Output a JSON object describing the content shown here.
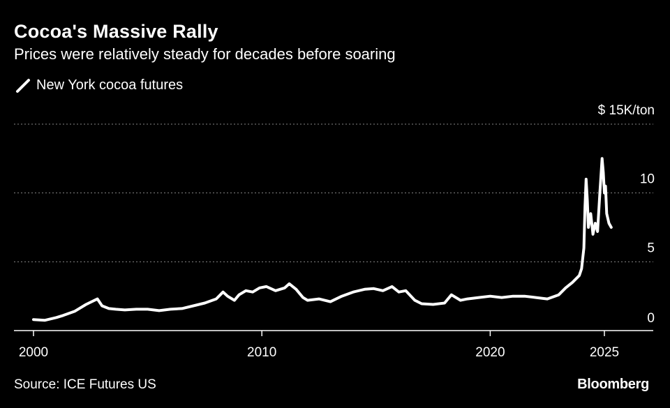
{
  "title": "Cocoa's Massive Rally",
  "subtitle": "Prices were relatively steady for decades before soaring",
  "legend_label": "New York cocoa futures",
  "source": "Source: ICE Futures US",
  "brand": "Bloomberg",
  "colors": {
    "background": "#000000",
    "line": "#ffffff",
    "grid": "#888888",
    "text": "#ffffff"
  },
  "chart_data": {
    "type": "line",
    "title": "Cocoa's Massive Rally",
    "subtitle": "Prices were relatively steady for decades before soaring",
    "xlabel": "",
    "ylabel": "$ 15K/ton",
    "x_ticks": [
      2000,
      2010,
      2020,
      2025
    ],
    "y_ticks": [
      0,
      5,
      10,
      15
    ],
    "y_tick_labels": [
      "0",
      "5",
      "10",
      "$ 15K/ton"
    ],
    "xlim": [
      2000,
      2027.8
    ],
    "ylim": [
      0,
      15
    ],
    "grid": true,
    "legend_position": "top-left",
    "series": [
      {
        "name": "New York cocoa futures",
        "x": [
          2000.0,
          2000.5,
          2001.0,
          2001.3,
          2001.8,
          2002.3,
          2002.8,
          2003.0,
          2003.3,
          2003.6,
          2004.0,
          2004.5,
          2005.0,
          2005.5,
          2006.0,
          2006.5,
          2007.0,
          2007.5,
          2008.0,
          2008.3,
          2008.5,
          2008.8,
          2009.0,
          2009.3,
          2009.6,
          2009.9,
          2010.2,
          2010.6,
          2011.0,
          2011.2,
          2011.5,
          2011.8,
          2012.0,
          2012.5,
          2013.0,
          2013.5,
          2014.0,
          2014.5,
          2014.9,
          2015.3,
          2015.7,
          2016.0,
          2016.3,
          2016.7,
          2017.0,
          2017.5,
          2018.0,
          2018.3,
          2018.7,
          2019.0,
          2019.5,
          2020.0,
          2020.5,
          2021.0,
          2021.5,
          2022.0,
          2022.5,
          2023.0,
          2023.3,
          2023.6,
          2023.9,
          2024.0,
          2024.1,
          2024.15,
          2024.2,
          2024.25,
          2024.3,
          2024.4,
          2024.5,
          2024.6,
          2024.7,
          2024.8,
          2024.9,
          2024.95,
          2025.0,
          2025.05,
          2025.1,
          2025.2,
          2025.3
        ],
        "y": [
          0.8,
          0.75,
          0.95,
          1.1,
          1.4,
          1.9,
          2.3,
          1.8,
          1.6,
          1.55,
          1.5,
          1.55,
          1.55,
          1.45,
          1.55,
          1.6,
          1.8,
          2.0,
          2.3,
          2.8,
          2.5,
          2.2,
          2.6,
          2.9,
          2.8,
          3.1,
          3.2,
          2.9,
          3.1,
          3.4,
          3.0,
          2.4,
          2.2,
          2.3,
          2.1,
          2.5,
          2.8,
          3.0,
          3.05,
          2.9,
          3.2,
          2.8,
          2.9,
          2.2,
          1.95,
          1.9,
          2.0,
          2.6,
          2.2,
          2.3,
          2.4,
          2.5,
          2.4,
          2.5,
          2.5,
          2.4,
          2.3,
          2.6,
          3.1,
          3.5,
          4.0,
          4.5,
          6.0,
          9.0,
          11.0,
          9.5,
          7.5,
          8.5,
          7.0,
          7.8,
          7.2,
          10.0,
          12.5,
          11.5,
          10.0,
          10.5,
          8.5,
          7.8,
          7.5
        ]
      }
    ]
  }
}
